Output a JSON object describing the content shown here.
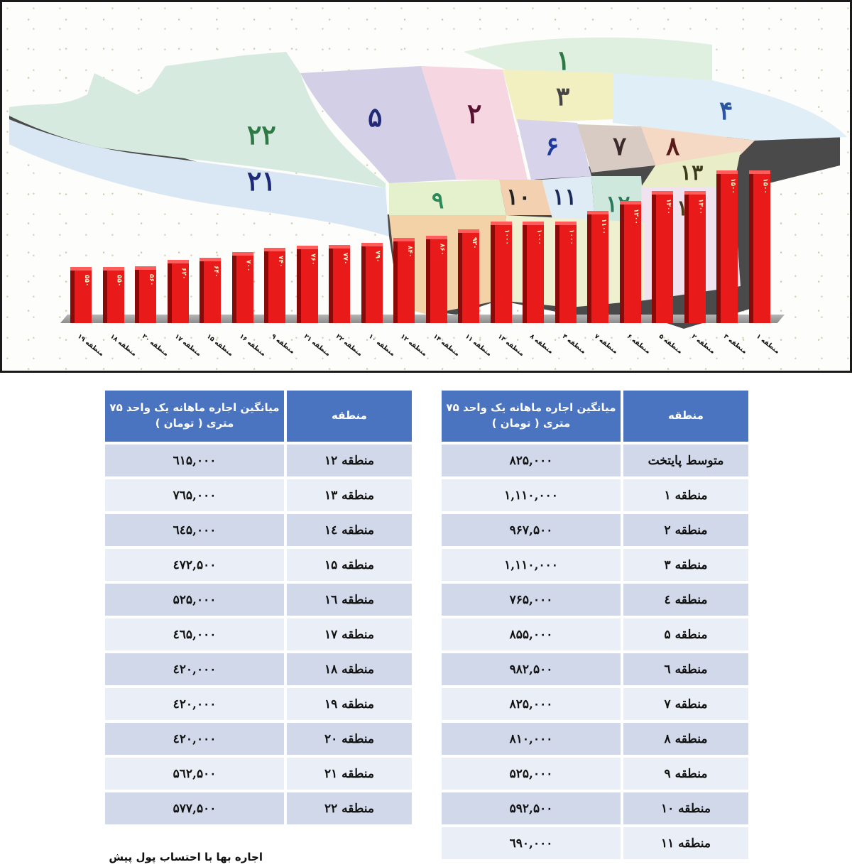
{
  "chart_data": {
    "type": "bar",
    "title": "",
    "xlabel": "",
    "ylabel": "",
    "categories": [
      "منطقه ۱۹",
      "منطقه ۱۸",
      "منطقه ۲۰",
      "منطقه ۱۷",
      "منطقه ۱۵",
      "منطقه ۱۶",
      "منطقه ۹",
      "منطقه ۲۱",
      "منطقه ۲۲",
      "منطقه ۱۰",
      "منطقه ۱۲",
      "منطقه ۱۴",
      "منطقه ۱۱",
      "منطقه ۱۳",
      "منطقه ۸",
      "منطقه ۴",
      "منطقه ۷",
      "منطقه ۶",
      "منطقه ۵",
      "منطقه ۲",
      "منطقه ۳",
      "منطقه ۱"
    ],
    "values": [
      550,
      550,
      560,
      620,
      640,
      700,
      740,
      760,
      770,
      790,
      840,
      860,
      920,
      1000,
      1000,
      1000,
      1100,
      1200,
      1300,
      1300,
      1500,
      1500
    ],
    "value_labels": [
      "۵۵۰",
      "۵۵۰",
      "۵۶۰",
      "۶۲۰",
      "۶۴۰",
      "۷۰۰",
      "۷۴۰",
      "۷۶۰",
      "۷۷۰",
      "۷۹۰",
      "۸۴۰",
      "۸۶۰",
      "۹۲۰",
      "۱۰۰۰",
      "۱۰۰۰",
      "۱۰۰۰",
      "۱۱۰۰",
      "۱۲۰۰",
      "۱۳۰۰",
      "۱۳۰۰",
      "۱۵۰۰",
      "۱۵۰۰"
    ],
    "ylim": [
      0,
      1600
    ],
    "grid": false,
    "legend": "none",
    "bar_color": "#e81a1a"
  },
  "map": {
    "district_labels": [
      {
        "id": "1",
        "text": "۱"
      },
      {
        "id": "2",
        "text": "۲"
      },
      {
        "id": "3",
        "text": "۳"
      },
      {
        "id": "4",
        "text": "۴"
      },
      {
        "id": "5",
        "text": "۵"
      },
      {
        "id": "6",
        "text": "۶"
      },
      {
        "id": "7",
        "text": "۷"
      },
      {
        "id": "8",
        "text": "۸"
      },
      {
        "id": "9",
        "text": "۹"
      },
      {
        "id": "10",
        "text": "۱۰"
      },
      {
        "id": "11",
        "text": "۱۱"
      },
      {
        "id": "12",
        "text": "۱۲"
      },
      {
        "id": "13",
        "text": "۱۳"
      },
      {
        "id": "14",
        "text": "۱۴"
      },
      {
        "id": "21",
        "text": "۲۱"
      },
      {
        "id": "22",
        "text": "۲۲"
      }
    ]
  },
  "table": {
    "header_region": "منطقه",
    "header_value": "میانگین اجاره ماهانه یک واحد ۷۵ متری ( تومان )",
    "header_color": "#4a74c0",
    "right_rows": [
      {
        "region": "متوسط پایتخت",
        "value": "۸۲۵,۰۰۰"
      },
      {
        "region": "منطقه ۱",
        "value": "۱,۱۱۰,۰۰۰"
      },
      {
        "region": "منطقه ۲",
        "value": "۹۶۷,۵۰۰"
      },
      {
        "region": "منطقه ۳",
        "value": "۱,۱۱۰,۰۰۰"
      },
      {
        "region": "منطقه ٤",
        "value": "۷۶۵,۰۰۰"
      },
      {
        "region": "منطقه ۵",
        "value": "۸۵۵,۰۰۰"
      },
      {
        "region": "منطقه ٦",
        "value": "۹۸۲,۵۰۰"
      },
      {
        "region": "منطقه ۷",
        "value": "۸۲۵,۰۰۰"
      },
      {
        "region": "منطقه ۸",
        "value": "۸۱۰,۰۰۰"
      },
      {
        "region": "منطقه ۹",
        "value": "۵۲۵,۰۰۰"
      },
      {
        "region": "منطقه ۱۰",
        "value": "۵۹۲,۵۰۰"
      },
      {
        "region": "منطقه ۱۱",
        "value": "٦۹۰,۰۰۰"
      }
    ],
    "left_rows": [
      {
        "region": "منطقه ۱۲",
        "value": "٦۱۵,۰۰۰"
      },
      {
        "region": "منطقه ۱۳",
        "value": "۷٦۵,۰۰۰"
      },
      {
        "region": "منطقه ۱٤",
        "value": "٦٤۵,۰۰۰"
      },
      {
        "region": "منطقه ۱۵",
        "value": "٤۷۲,۵۰۰"
      },
      {
        "region": "منطقه ۱٦",
        "value": "۵۲۵,۰۰۰"
      },
      {
        "region": "منطقه ۱۷",
        "value": "٤٦۵,۰۰۰"
      },
      {
        "region": "منطقه ۱۸",
        "value": "٤۲۰,۰۰۰"
      },
      {
        "region": "منطقه ۱۹",
        "value": "٤۲۰,۰۰۰"
      },
      {
        "region": "منطقه ۲۰",
        "value": "٤۲۰,۰۰۰"
      },
      {
        "region": "منطقه ۲۱",
        "value": "۵٦۲,۵۰۰"
      },
      {
        "region": "منطقه ۲۲",
        "value": "۵۷۷,۵۰۰"
      }
    ]
  },
  "footnote": "اجاره بها با احتساب پول پیش"
}
